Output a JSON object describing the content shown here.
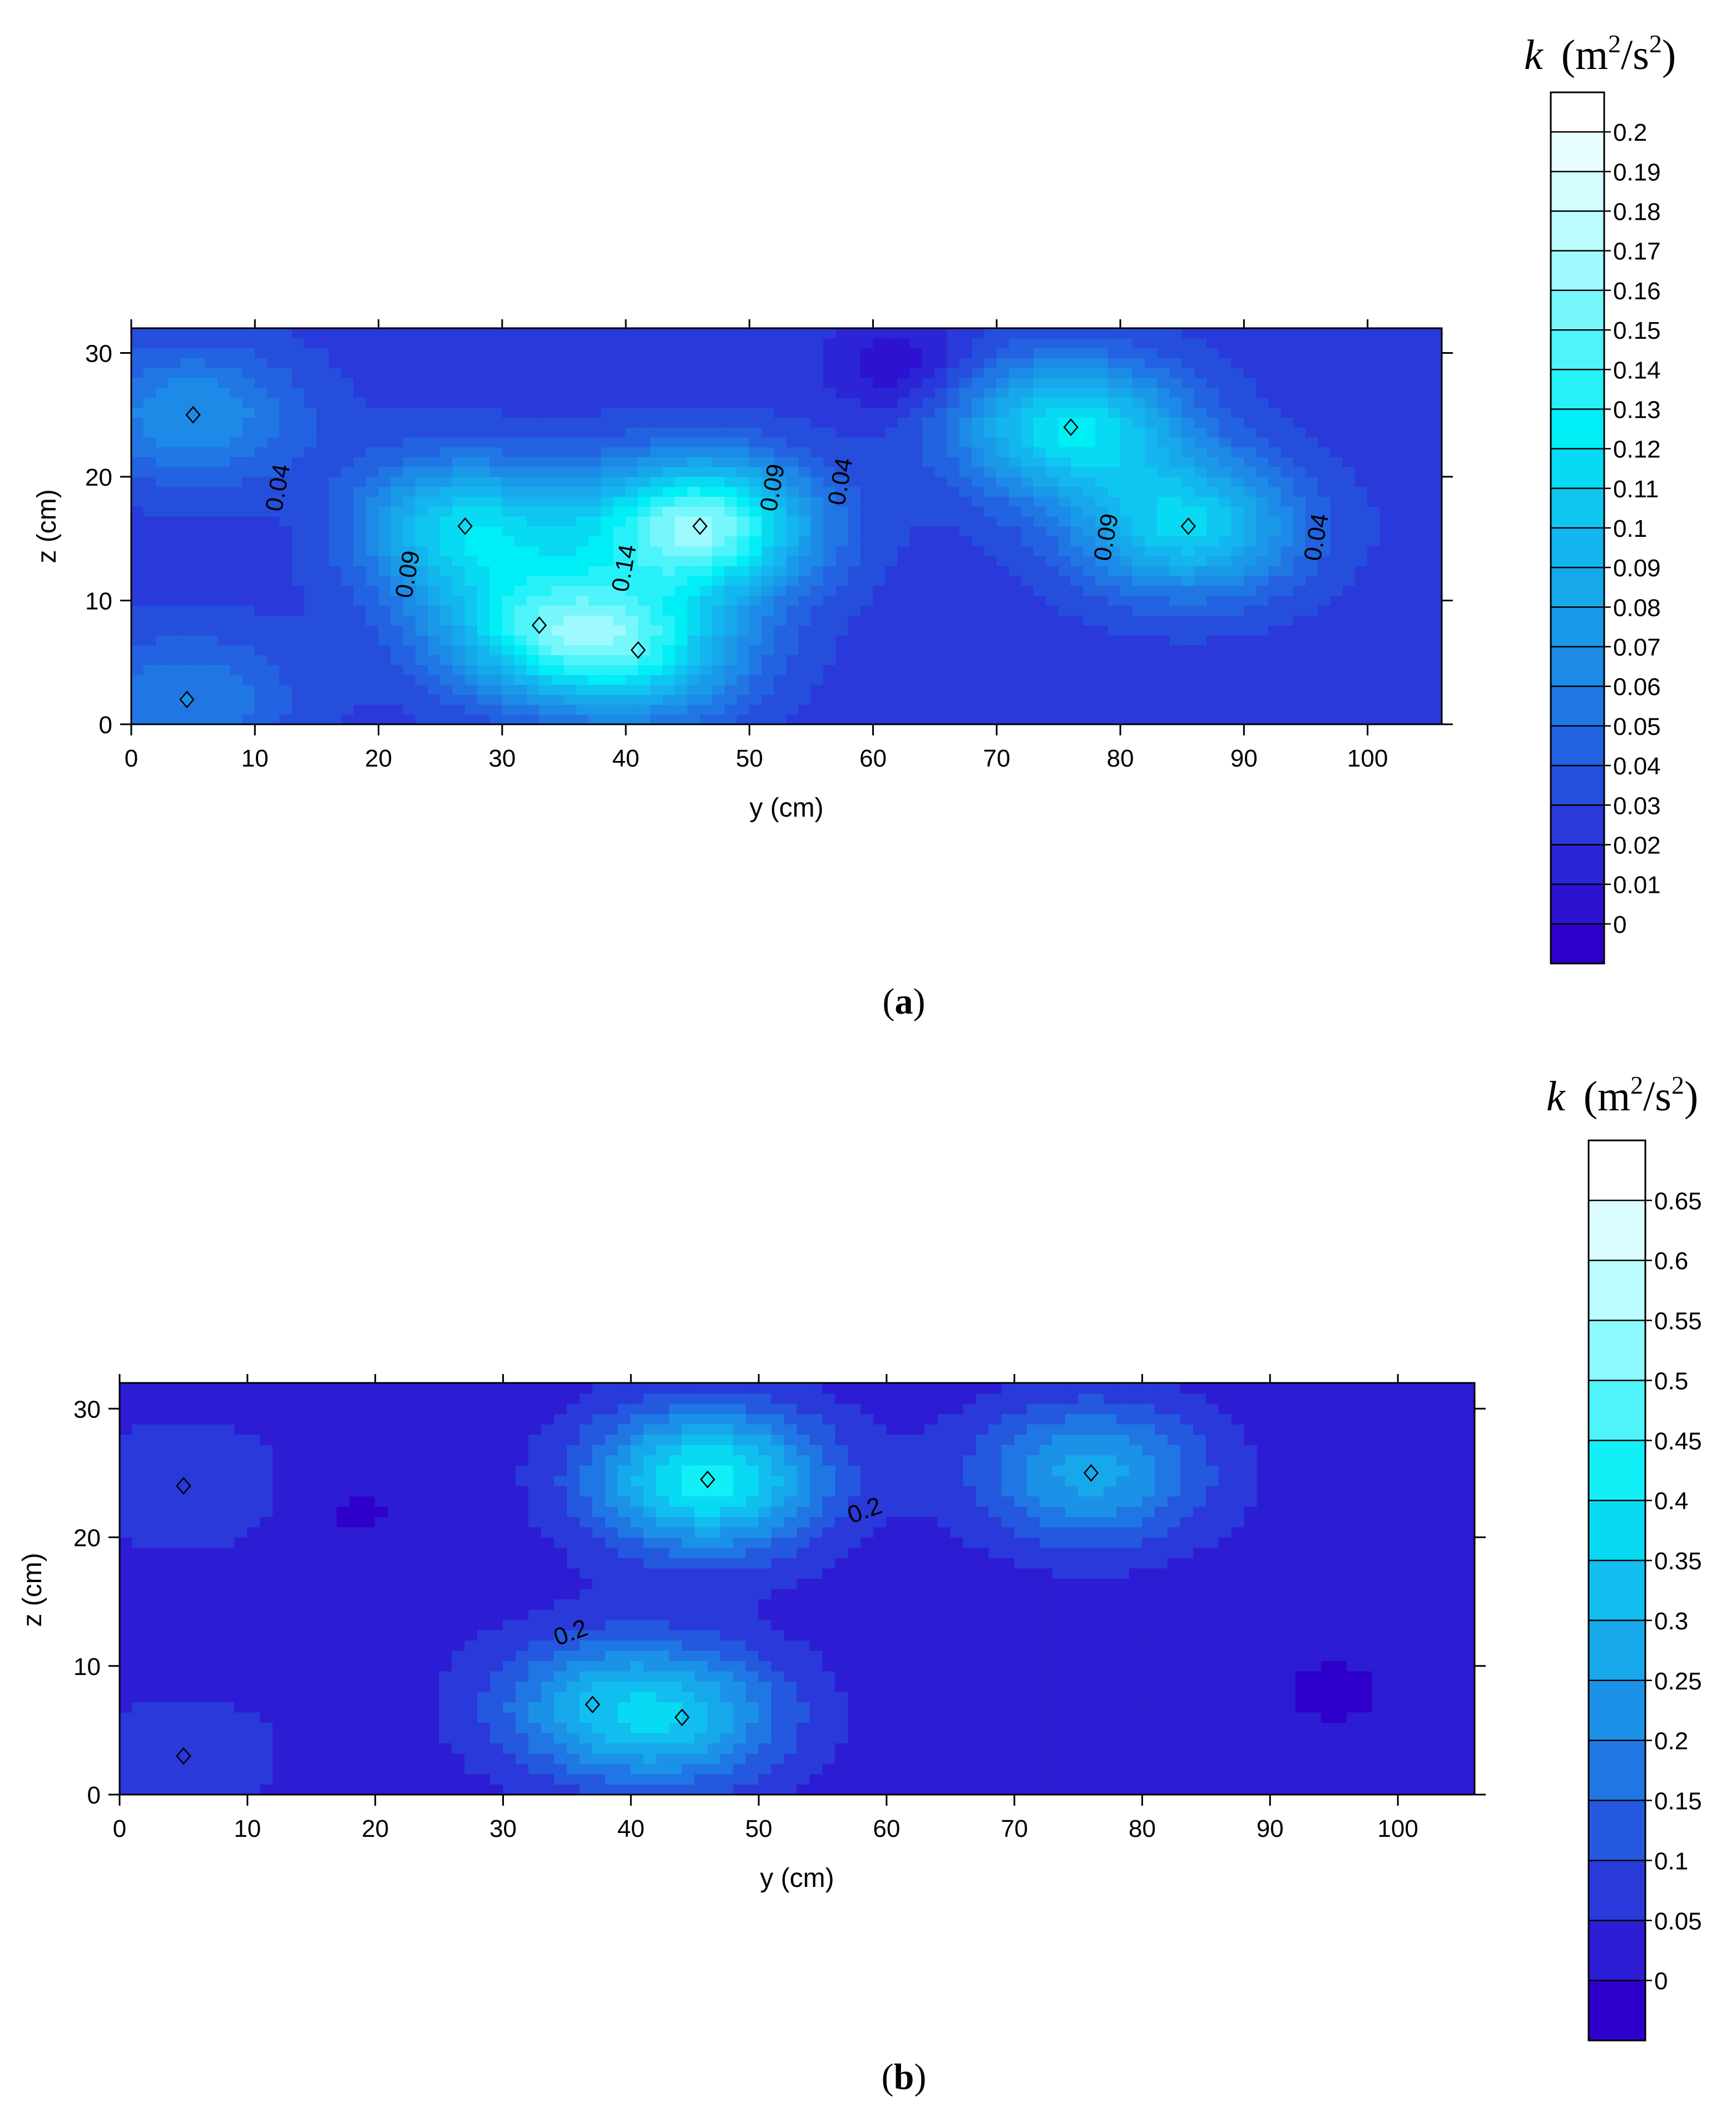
{
  "panels": [
    {
      "id": "a",
      "caption_letter": "a",
      "colorbar": {
        "title_var": "k",
        "title_unit_open": "(m",
        "title_unit_sup1": "2",
        "title_unit_mid": "/s",
        "title_unit_sup2": "2",
        "title_unit_close": ")",
        "ticks": [
          "0",
          "0.01",
          "0.02",
          "0.03",
          "0.04",
          "0.05",
          "0.06",
          "0.07",
          "0.08",
          "0.09",
          "0.1",
          "0.11",
          "0.12",
          "0.13",
          "0.14",
          "0.15",
          "0.16",
          "0.17",
          "0.18",
          "0.19",
          "0.2"
        ],
        "low_color": "#2f00cc",
        "high_color": "#ffffff"
      },
      "contour_labels": [
        "0.04",
        "0.09",
        "0.09",
        "0.04",
        "0.14",
        "0.09",
        "0.04"
      ]
    },
    {
      "id": "b",
      "caption_letter": "b",
      "colorbar": {
        "title_var": "k",
        "title_unit_open": "(m",
        "title_unit_sup1": "2",
        "title_unit_mid": "/s",
        "title_unit_sup2": "2",
        "title_unit_close": ")",
        "ticks": [
          "0",
          "0.05",
          "0.1",
          "0.15",
          "0.2",
          "0.25",
          "0.3",
          "0.35",
          "0.4",
          "0.45",
          "0.5",
          "0.55",
          "0.6",
          "0.65"
        ],
        "low_color": "#2f00cc",
        "high_color": "#ffffff"
      },
      "contour_labels": [
        "0.2",
        "0.2"
      ]
    }
  ],
  "chart_data": [
    {
      "type": "heatmap",
      "subtype": "filled-contour",
      "panel": "a",
      "xlabel": "y (cm)",
      "ylabel": "z (cm)",
      "xlim": [
        0,
        106
      ],
      "ylim": [
        0,
        32
      ],
      "xticks": [
        0,
        10,
        20,
        30,
        40,
        50,
        60,
        70,
        80,
        90,
        100
      ],
      "yticks": [
        0,
        10,
        20,
        30
      ],
      "colorbar_label": "k (m2/s2)",
      "levels_step": 0.01,
      "vmin": 0,
      "vmax": 0.2,
      "peaks": [
        {
          "y": 5,
          "z": 25,
          "k": 0.08
        },
        {
          "y": 4.5,
          "z": 2,
          "k": 0.07
        },
        {
          "y": 27,
          "z": 16,
          "k": 0.12
        },
        {
          "y": 33,
          "z": 8,
          "k": 0.12
        },
        {
          "y": 41,
          "z": 6,
          "k": 0.12
        },
        {
          "y": 46,
          "z": 16,
          "k": 0.17
        },
        {
          "y": 76,
          "z": 24,
          "k": 0.13
        },
        {
          "y": 85.5,
          "z": 16,
          "k": 0.12
        }
      ],
      "troughs": [
        {
          "y": 16,
          "z": 16,
          "k": 0.03
        },
        {
          "y": 36,
          "z": 16.5,
          "k": 0.04
        },
        {
          "y": 62,
          "z": 29,
          "k": 0.01
        }
      ],
      "background_k": 0.035,
      "contour_annotations": [
        {
          "text": "0.04",
          "y": 12.5,
          "z": 19
        },
        {
          "text": "0.09",
          "y": 23,
          "z": 12
        },
        {
          "text": "0.09",
          "y": 52.5,
          "z": 19
        },
        {
          "text": "0.04",
          "y": 58,
          "z": 19.5
        },
        {
          "text": "0.14",
          "y": 40.5,
          "z": 12.5
        },
        {
          "text": "0.09",
          "y": 79.5,
          "z": 15
        },
        {
          "text": "0.04",
          "y": 96.5,
          "z": 15
        }
      ]
    },
    {
      "type": "heatmap",
      "subtype": "filled-contour",
      "panel": "b",
      "xlabel": "y (cm)",
      "ylabel": "z (cm)",
      "xlim": [
        0,
        106
      ],
      "ylim": [
        0,
        32
      ],
      "xticks": [
        0,
        10,
        20,
        30,
        40,
        50,
        60,
        70,
        80,
        90,
        100
      ],
      "yticks": [
        0,
        10,
        20,
        30
      ],
      "colorbar_label": "k (m2/s2)",
      "levels_step": 0.05,
      "vmin": 0,
      "vmax": 0.65,
      "peaks": [
        {
          "y": 5,
          "z": 24,
          "k": 0.14
        },
        {
          "y": 5,
          "z": 3,
          "k": 0.13
        },
        {
          "y": 46,
          "z": 24.5,
          "k": 0.48
        },
        {
          "y": 44,
          "z": 6,
          "k": 0.3
        },
        {
          "y": 37,
          "z": 7,
          "k": 0.25
        },
        {
          "y": 76,
          "z": 25,
          "k": 0.32
        }
      ],
      "troughs": [
        {
          "y": 18,
          "z": 22,
          "k": 0.04
        },
        {
          "y": 95,
          "z": 8,
          "k": 0.04
        }
      ],
      "background_k": 0.07,
      "contour_annotations": [
        {
          "text": "0.2",
          "y": 58.5,
          "z": 21.5
        },
        {
          "text": "0.2",
          "y": 35.5,
          "z": 12
        }
      ]
    }
  ]
}
